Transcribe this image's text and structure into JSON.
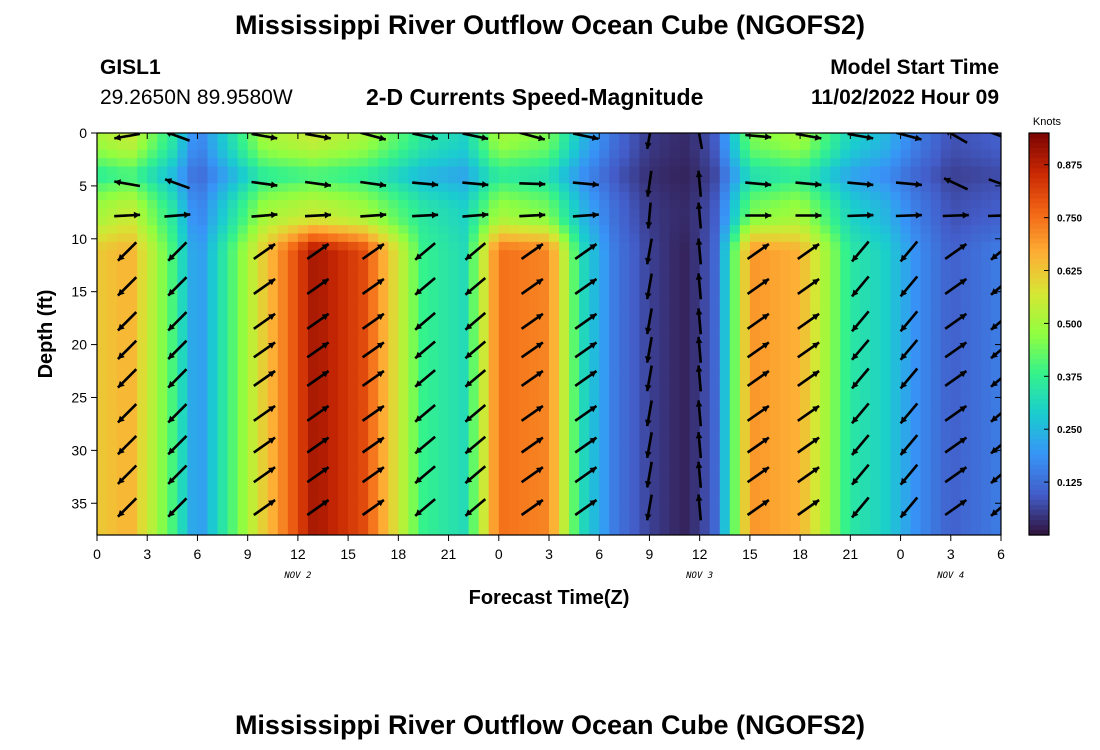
{
  "header": {
    "title_top": "Mississippi River Outflow Ocean Cube (NGOFS2)",
    "title_bottom": "Mississippi River Outflow Ocean Cube (NGOFS2)",
    "station": "GISL1",
    "coordinates": "29.2650N  89.9580W",
    "model_start_label": "Model Start Time",
    "model_start_value": "11/02/2022 Hour 09"
  },
  "chart_data": {
    "type": "heatmap",
    "title": "2-D Currents Speed-Magnitude",
    "xlabel": "Forecast Time(Z)",
    "ylabel": "Depth (ft)",
    "x_range_hours": [
      0,
      54
    ],
    "y_range_ft": [
      0,
      38
    ],
    "y_inverted": true,
    "x_tick_labels": [
      "0",
      "3",
      "6",
      "9",
      "12",
      "15",
      "18",
      "21",
      "0",
      "3",
      "6",
      "9",
      "12",
      "15",
      "18",
      "21",
      "0",
      "3",
      "6"
    ],
    "y_ticks": [
      0,
      5,
      10,
      15,
      20,
      25,
      30,
      35
    ],
    "day_labels": [
      {
        "label": "NOV 2",
        "hour": 12
      },
      {
        "label": "NOV 3",
        "hour": 36
      },
      {
        "label": "NOV 4",
        "hour": 51
      }
    ],
    "colorbar": {
      "title": "Knots",
      "ticks": [
        "0.875",
        "0.750",
        "0.625",
        "0.500",
        "0.375",
        "0.250",
        "0.125"
      ],
      "tick_values": [
        0.875,
        0.75,
        0.625,
        0.5,
        0.375,
        0.25,
        0.125
      ],
      "range": [
        0,
        0.95
      ],
      "colormap": "turbo"
    },
    "speed_profile": {
      "hours": [
        0,
        2,
        4.5,
        6,
        10,
        13,
        16,
        19.5,
        22,
        24,
        27,
        29,
        31,
        33,
        35,
        36,
        37,
        39,
        42,
        45,
        47,
        49,
        51,
        54
      ],
      "deep_knots": [
        0.62,
        0.66,
        0.4,
        0.18,
        0.62,
        0.9,
        0.8,
        0.38,
        0.32,
        0.75,
        0.72,
        0.32,
        0.14,
        0.06,
        0.02,
        0.05,
        0.12,
        0.7,
        0.66,
        0.35,
        0.3,
        0.18,
        0.1,
        0.15
      ],
      "surface_knots": [
        0.5,
        0.55,
        0.35,
        0.15,
        0.5,
        0.55,
        0.5,
        0.35,
        0.3,
        0.5,
        0.45,
        0.25,
        0.12,
        0.05,
        0.03,
        0.05,
        0.1,
        0.45,
        0.5,
        0.3,
        0.25,
        0.15,
        0.08,
        0.1
      ]
    },
    "vectors": {
      "hours": [
        1.8,
        4.8,
        10,
        13.2,
        16.5,
        19.6,
        22.6,
        26,
        29.2,
        33,
        36,
        39.5,
        42.5,
        45.6,
        48.5,
        51.3,
        54
      ],
      "depths_ft": [
        0.3,
        4.8,
        7.8,
        11.2,
        14.5,
        17.8,
        20.5,
        23.2,
        26.5,
        29.5,
        32.3,
        35.4
      ],
      "surface_direction_deg": [
        170,
        200,
        10,
        10,
        15,
        12,
        12,
        15,
        12,
        100,
        260,
        5,
        10,
        10,
        15,
        210,
        20
      ],
      "surface_direction_deg_layer2": [
        190,
        200,
        8,
        8,
        8,
        5,
        5,
        2,
        5,
        98,
        265,
        5,
        5,
        5,
        5,
        205,
        20
      ],
      "upper_direction_deg": [
        -3,
        -5,
        -5,
        -3,
        -4,
        -3,
        -5,
        -3,
        -4,
        95,
        265,
        0,
        0,
        -2,
        -2,
        -2,
        -2
      ],
      "deep_direction_deg": [
        135,
        135,
        -35,
        -35,
        -35,
        140,
        140,
        -35,
        -35,
        100,
        265,
        -35,
        -35,
        130,
        130,
        -35,
        140
      ],
      "vector_scale_ft_per_knot": 42
    }
  }
}
